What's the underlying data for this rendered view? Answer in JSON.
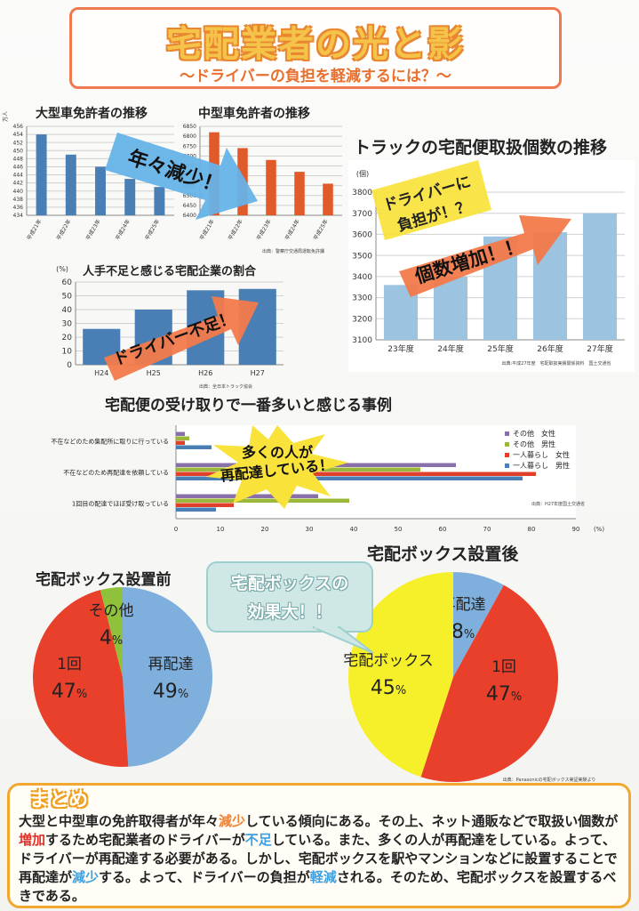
{
  "header": {
    "title": "宅配業者の光と影",
    "subtitle": "～ドライバーの負担を軽減するには？～"
  },
  "annotations": {
    "decrease": "年々減少！",
    "burden_line1": "ドライバーに",
    "burden_line2": "負担が！？",
    "count_increase": "個数増加！！",
    "shortage": "ドライバー不足！",
    "redelivery_line1": "多くの人が",
    "redelivery_line2": "再配達している！",
    "bubble_line1": "宅配ボックスの",
    "bubble_line2": "効果大！！"
  },
  "colors": {
    "title_fill": "#f6c34a",
    "title_outline": "#e8872f",
    "steel_blue": "#4a7fb5",
    "orange_red": "#e05a2a",
    "light_blue": "#9cc3e0",
    "arrow_blue": "#66b3e8",
    "arrow_orange": "#f27a4a",
    "pie_blue": "#7fb0dd",
    "pie_red": "#e8402a",
    "pie_green": "#8fc23a",
    "pie_yellow": "#f6f02a"
  },
  "chart_data": [
    {
      "id": "large-license",
      "type": "bar",
      "title": "大型車免許者の推移",
      "ylabel": "万人",
      "categories": [
        "平成21年",
        "平成22年",
        "平成23年",
        "平成24年",
        "平成25年"
      ],
      "values": [
        454,
        449,
        446,
        443,
        441
      ],
      "ylim": [
        434,
        456
      ],
      "yticks": [
        434,
        436,
        438,
        440,
        442,
        444,
        446,
        448,
        450,
        452,
        454,
        456
      ],
      "grid": true,
      "source": ""
    },
    {
      "id": "medium-license",
      "type": "bar",
      "title": "中型車免許者の推移",
      "categories": [
        "平成21年",
        "平成22年",
        "平成23年",
        "平成24年",
        "平成25年"
      ],
      "values": [
        6820,
        6740,
        6680,
        6620,
        6560
      ],
      "ylim": [
        6400,
        6850
      ],
      "yticks": [
        6400,
        6450,
        6500,
        6550,
        6600,
        6650,
        6700,
        6750,
        6800,
        6850
      ],
      "grid": true,
      "source": "出典：警察庁交通局運転免許課"
    },
    {
      "id": "truck-delivery",
      "type": "bar",
      "title": "トラックの宅配便取扱個数の推移",
      "ylabel": "(個)",
      "categories": [
        "23年度",
        "24年度",
        "25年度",
        "26年度",
        "27年度"
      ],
      "values": [
        3360,
        3400,
        3590,
        3610,
        3700
      ],
      "ylim": [
        3100,
        3800
      ],
      "yticks": [
        3100,
        3200,
        3300,
        3400,
        3500,
        3600,
        3700,
        3800
      ],
      "grid": true,
      "source": "出典:平成27年度　宅配取扱実績関係資料　国土交通省"
    },
    {
      "id": "labor-shortage",
      "type": "bar",
      "title": "人手不足と感じる宅配企業の割合",
      "ylabel": "(%)",
      "categories": [
        "H24",
        "H25",
        "H26",
        "H27"
      ],
      "values": [
        26,
        40,
        54,
        55
      ],
      "ylim": [
        0,
        60
      ],
      "yticks": [
        0,
        10,
        20,
        30,
        40,
        50,
        60
      ],
      "grid": true,
      "source": "出典：全日本トラック協会"
    },
    {
      "id": "receiving-cases",
      "type": "bar",
      "title": "宅配便の受け取りで一番多いと感じる事例",
      "orientation": "horizontal",
      "categories": [
        "1回目の配達でほぼ受け取っている",
        "不在などのため再配達を依頼している",
        "不在などのため集配所に取りに行っている"
      ],
      "series": [
        {
          "name": "一人暮らし　男性",
          "values": [
            9,
            78,
            8
          ]
        },
        {
          "name": "一人暮らし　女性",
          "values": [
            13,
            81,
            2
          ]
        },
        {
          "name": "その他　男性",
          "values": [
            39,
            55,
            3
          ]
        },
        {
          "name": "その他　女性",
          "values": [
            32,
            63,
            2
          ]
        }
      ],
      "legend_order": [
        "その他　女性",
        "その他　男性",
        "一人暮らし　女性",
        "一人暮らし　男性"
      ],
      "xlim": [
        0,
        90
      ],
      "xticks": [
        0,
        10,
        20,
        30,
        40,
        50,
        60,
        70,
        80,
        90
      ],
      "xunit": "(%)",
      "legend": "top-right",
      "grid": false,
      "source": "出典：H27年度国土交通省"
    },
    {
      "id": "pie-before",
      "type": "pie",
      "title": "宅配ボックス設置前",
      "slices": [
        {
          "label": "再配達",
          "value": 49,
          "text": "49"
        },
        {
          "label": "1回",
          "value": 47,
          "text": "47"
        },
        {
          "label": "その他",
          "value": 4,
          "text": "4"
        }
      ],
      "unit": "%"
    },
    {
      "id": "pie-after",
      "type": "pie",
      "title": "宅配ボックス設置後",
      "slices": [
        {
          "label": "再配達",
          "value": 8,
          "text": "8"
        },
        {
          "label": "1回",
          "value": 47,
          "text": "47"
        },
        {
          "label": "宅配ボックス",
          "value": 45,
          "text": "45"
        }
      ],
      "unit": "%",
      "source": "出典：Panasonicの宅配ボックス実証実験より"
    }
  ],
  "summary": {
    "heading": "まとめ",
    "parts": [
      {
        "t": "大型と中型車の免許取得者が年々",
        "c": ""
      },
      {
        "t": "減少",
        "c": "hl-or"
      },
      {
        "t": "している傾向にある。その上、ネット通販などで取扱い個数が",
        "c": ""
      },
      {
        "t": "増加",
        "c": "hl-red"
      },
      {
        "t": "するため宅配業者のドライバーが",
        "c": ""
      },
      {
        "t": "不足",
        "c": "hl-blue"
      },
      {
        "t": "している。また、多くの人が再配達をしている。よって、ドライバーが再配達する必要がある。しかし、宅配ボックスを駅やマンションなどに設置することで再配達が",
        "c": ""
      },
      {
        "t": "減少",
        "c": "hl-blue"
      },
      {
        "t": "する。よって、ドライバーの負担が",
        "c": ""
      },
      {
        "t": "軽減",
        "c": "hl-blue"
      },
      {
        "t": "される。そのため、宅配ボックスを設置するべきである。",
        "c": ""
      }
    ]
  }
}
